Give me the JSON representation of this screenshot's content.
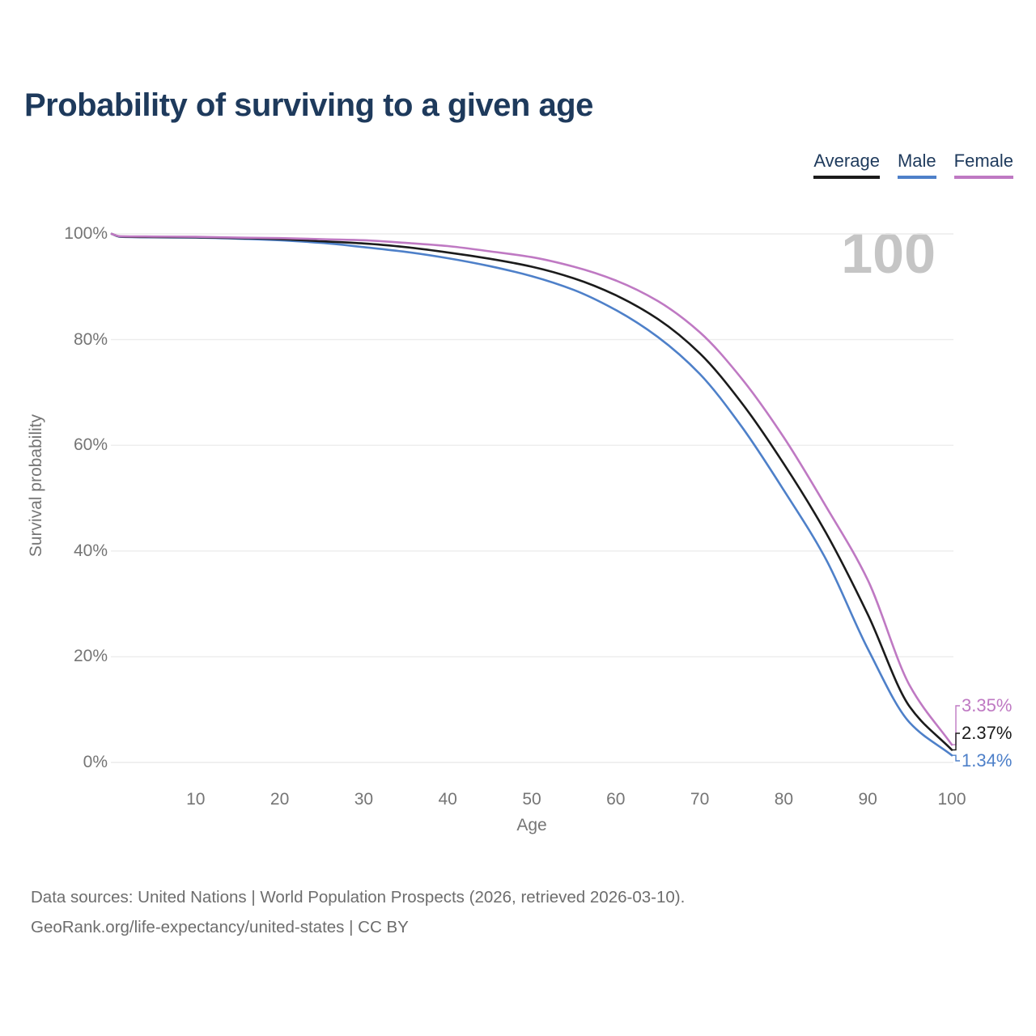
{
  "title": "Probability of surviving to a given age",
  "watermark": "100",
  "legend": {
    "items": [
      {
        "label": "Average",
        "color": "#1b1b1b"
      },
      {
        "label": "Male",
        "color": "#4e80c9"
      },
      {
        "label": "Female",
        "color": "#bf79c3"
      }
    ]
  },
  "y_axis": {
    "label": "Survival probability",
    "ticks": [
      "100%",
      "80%",
      "60%",
      "40%",
      "20%",
      "0%"
    ]
  },
  "x_axis": {
    "label": "Age",
    "ticks": [
      "10",
      "20",
      "30",
      "40",
      "50",
      "60",
      "70",
      "80",
      "90",
      "100"
    ]
  },
  "end_labels": [
    {
      "text": "3.35%",
      "series": "Female"
    },
    {
      "text": "2.37%",
      "series": "Average"
    },
    {
      "text": "1.34%",
      "series": "Male"
    }
  ],
  "footer": {
    "line1": "Data sources: United Nations | World Population Prospects (2026, retrieved 2026-03-10).",
    "line2": "GeoRank.org/life-expectancy/united-states | CC BY"
  },
  "chart_data": {
    "type": "line",
    "title": "Probability of surviving to a given age",
    "xlabel": "Age",
    "ylabel": "Survival probability",
    "xlim": [
      0,
      100
    ],
    "ylim": [
      0,
      100
    ],
    "grid": "horizontal",
    "legend_position": "top-right",
    "x_tick_values": [
      10,
      20,
      30,
      40,
      50,
      60,
      70,
      80,
      90,
      100
    ],
    "y_tick_values": [
      100,
      80,
      60,
      40,
      20,
      0
    ],
    "x": [
      0,
      1,
      5,
      10,
      15,
      20,
      25,
      30,
      35,
      40,
      45,
      50,
      55,
      60,
      65,
      70,
      75,
      80,
      85,
      90,
      95,
      100
    ],
    "series": [
      {
        "name": "Average",
        "color": "#1b1b1b",
        "end_value_pct": 2.37,
        "values": [
          100,
          99.5,
          99.4,
          99.35,
          99.2,
          99.0,
          98.6,
          98.2,
          97.5,
          96.5,
          95.3,
          93.8,
          91.6,
          88.4,
          83.9,
          77.4,
          68.0,
          56.5,
          43.5,
          28.0,
          10.5,
          2.37
        ]
      },
      {
        "name": "Male",
        "color": "#4e80c9",
        "end_value_pct": 1.34,
        "values": [
          100,
          99.45,
          99.35,
          99.3,
          99.1,
          98.8,
          98.3,
          97.5,
          96.6,
          95.4,
          93.9,
          92.0,
          89.4,
          85.6,
          80.5,
          73.5,
          63.5,
          51.5,
          38.5,
          21.5,
          7.5,
          1.34
        ]
      },
      {
        "name": "Female",
        "color": "#bf79c3",
        "end_value_pct": 3.35,
        "values": [
          100,
          99.55,
          99.5,
          99.45,
          99.3,
          99.2,
          99.0,
          98.8,
          98.3,
          97.7,
          96.7,
          95.6,
          93.8,
          91.2,
          87.3,
          81.4,
          72.6,
          61.5,
          48.5,
          34.5,
          14.5,
          3.35
        ]
      }
    ]
  }
}
